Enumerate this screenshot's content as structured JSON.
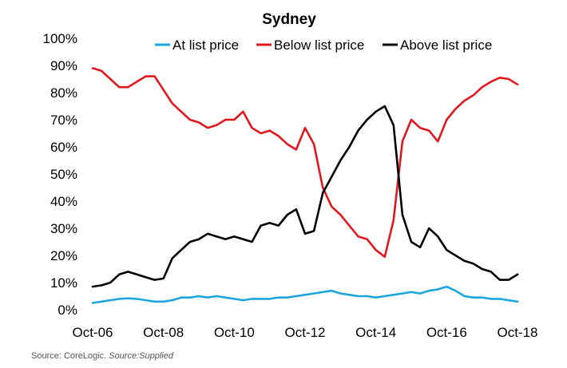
{
  "chart_data": {
    "type": "line",
    "title": "Sydney",
    "xlabel": "",
    "ylabel": "",
    "ylim": [
      0,
      100
    ],
    "yticks": [
      "0%",
      "10%",
      "20%",
      "30%",
      "40%",
      "50%",
      "60%",
      "70%",
      "80%",
      "90%",
      "100%"
    ],
    "xticks": [
      "Oct-06",
      "Oct-08",
      "Oct-10",
      "Oct-12",
      "Oct-14",
      "Oct-16",
      "Oct-18"
    ],
    "x_start": "Oct-06",
    "x_end": "Oct-18",
    "legend_position": "top",
    "grid": false,
    "x": [
      "2006-10",
      "2007-01",
      "2007-04",
      "2007-07",
      "2007-10",
      "2008-01",
      "2008-04",
      "2008-07",
      "2008-10",
      "2009-01",
      "2009-04",
      "2009-07",
      "2009-10",
      "2010-01",
      "2010-04",
      "2010-07",
      "2010-10",
      "2011-01",
      "2011-04",
      "2011-07",
      "2011-10",
      "2012-01",
      "2012-04",
      "2012-07",
      "2012-10",
      "2013-01",
      "2013-04",
      "2013-07",
      "2013-10",
      "2014-01",
      "2014-04",
      "2014-07",
      "2014-10",
      "2015-01",
      "2015-04",
      "2015-07",
      "2015-10",
      "2016-01",
      "2016-04",
      "2016-07",
      "2016-10",
      "2017-01",
      "2017-04",
      "2017-07",
      "2017-10",
      "2018-01",
      "2018-04",
      "2018-07",
      "2018-10"
    ],
    "series": [
      {
        "name": "At list price",
        "color": "#1aa6dd",
        "values": [
          2.5,
          3,
          3.5,
          4,
          4.2,
          4,
          3.5,
          3,
          3,
          3.5,
          4.5,
          4.5,
          5,
          4.5,
          5,
          4.5,
          4,
          3.5,
          4,
          4,
          4,
          4.5,
          4.5,
          5,
          5.5,
          6,
          6.5,
          7,
          6,
          5.5,
          5,
          5,
          4.5,
          5,
          5.5,
          6,
          6.5,
          6,
          7,
          7.5,
          8.5,
          7,
          5,
          4.5,
          4.5,
          4,
          4,
          3.5,
          3
        ]
      },
      {
        "name": "Below list price",
        "color": "#e0171f",
        "values": [
          89,
          88,
          85,
          82,
          82,
          84,
          86,
          86,
          81,
          76,
          73,
          70,
          69,
          67,
          68,
          70,
          70,
          73,
          67,
          65,
          66,
          64,
          61,
          59,
          67,
          61,
          45,
          38,
          35,
          31,
          27,
          26,
          22,
          19.5,
          33,
          62,
          70,
          67,
          66,
          62,
          70,
          74,
          77,
          79,
          82,
          84,
          85.5,
          85,
          83
        ]
      },
      {
        "name": "Above list price",
        "color": "#000000",
        "values": [
          8.5,
          9,
          10,
          13,
          14,
          13,
          12,
          11,
          11.5,
          19,
          22,
          25,
          26,
          28,
          27,
          26,
          27,
          26,
          25,
          31,
          32,
          31,
          35,
          37,
          28,
          29,
          43,
          49,
          55,
          60,
          66,
          70,
          73,
          75,
          68,
          35,
          25,
          23,
          30,
          27,
          22,
          20,
          18,
          17,
          15,
          14,
          11,
          11,
          13
        ]
      }
    ]
  },
  "source": {
    "prefix": "Source: CoreLogic.",
    "supplied": "Source:Supplied"
  }
}
